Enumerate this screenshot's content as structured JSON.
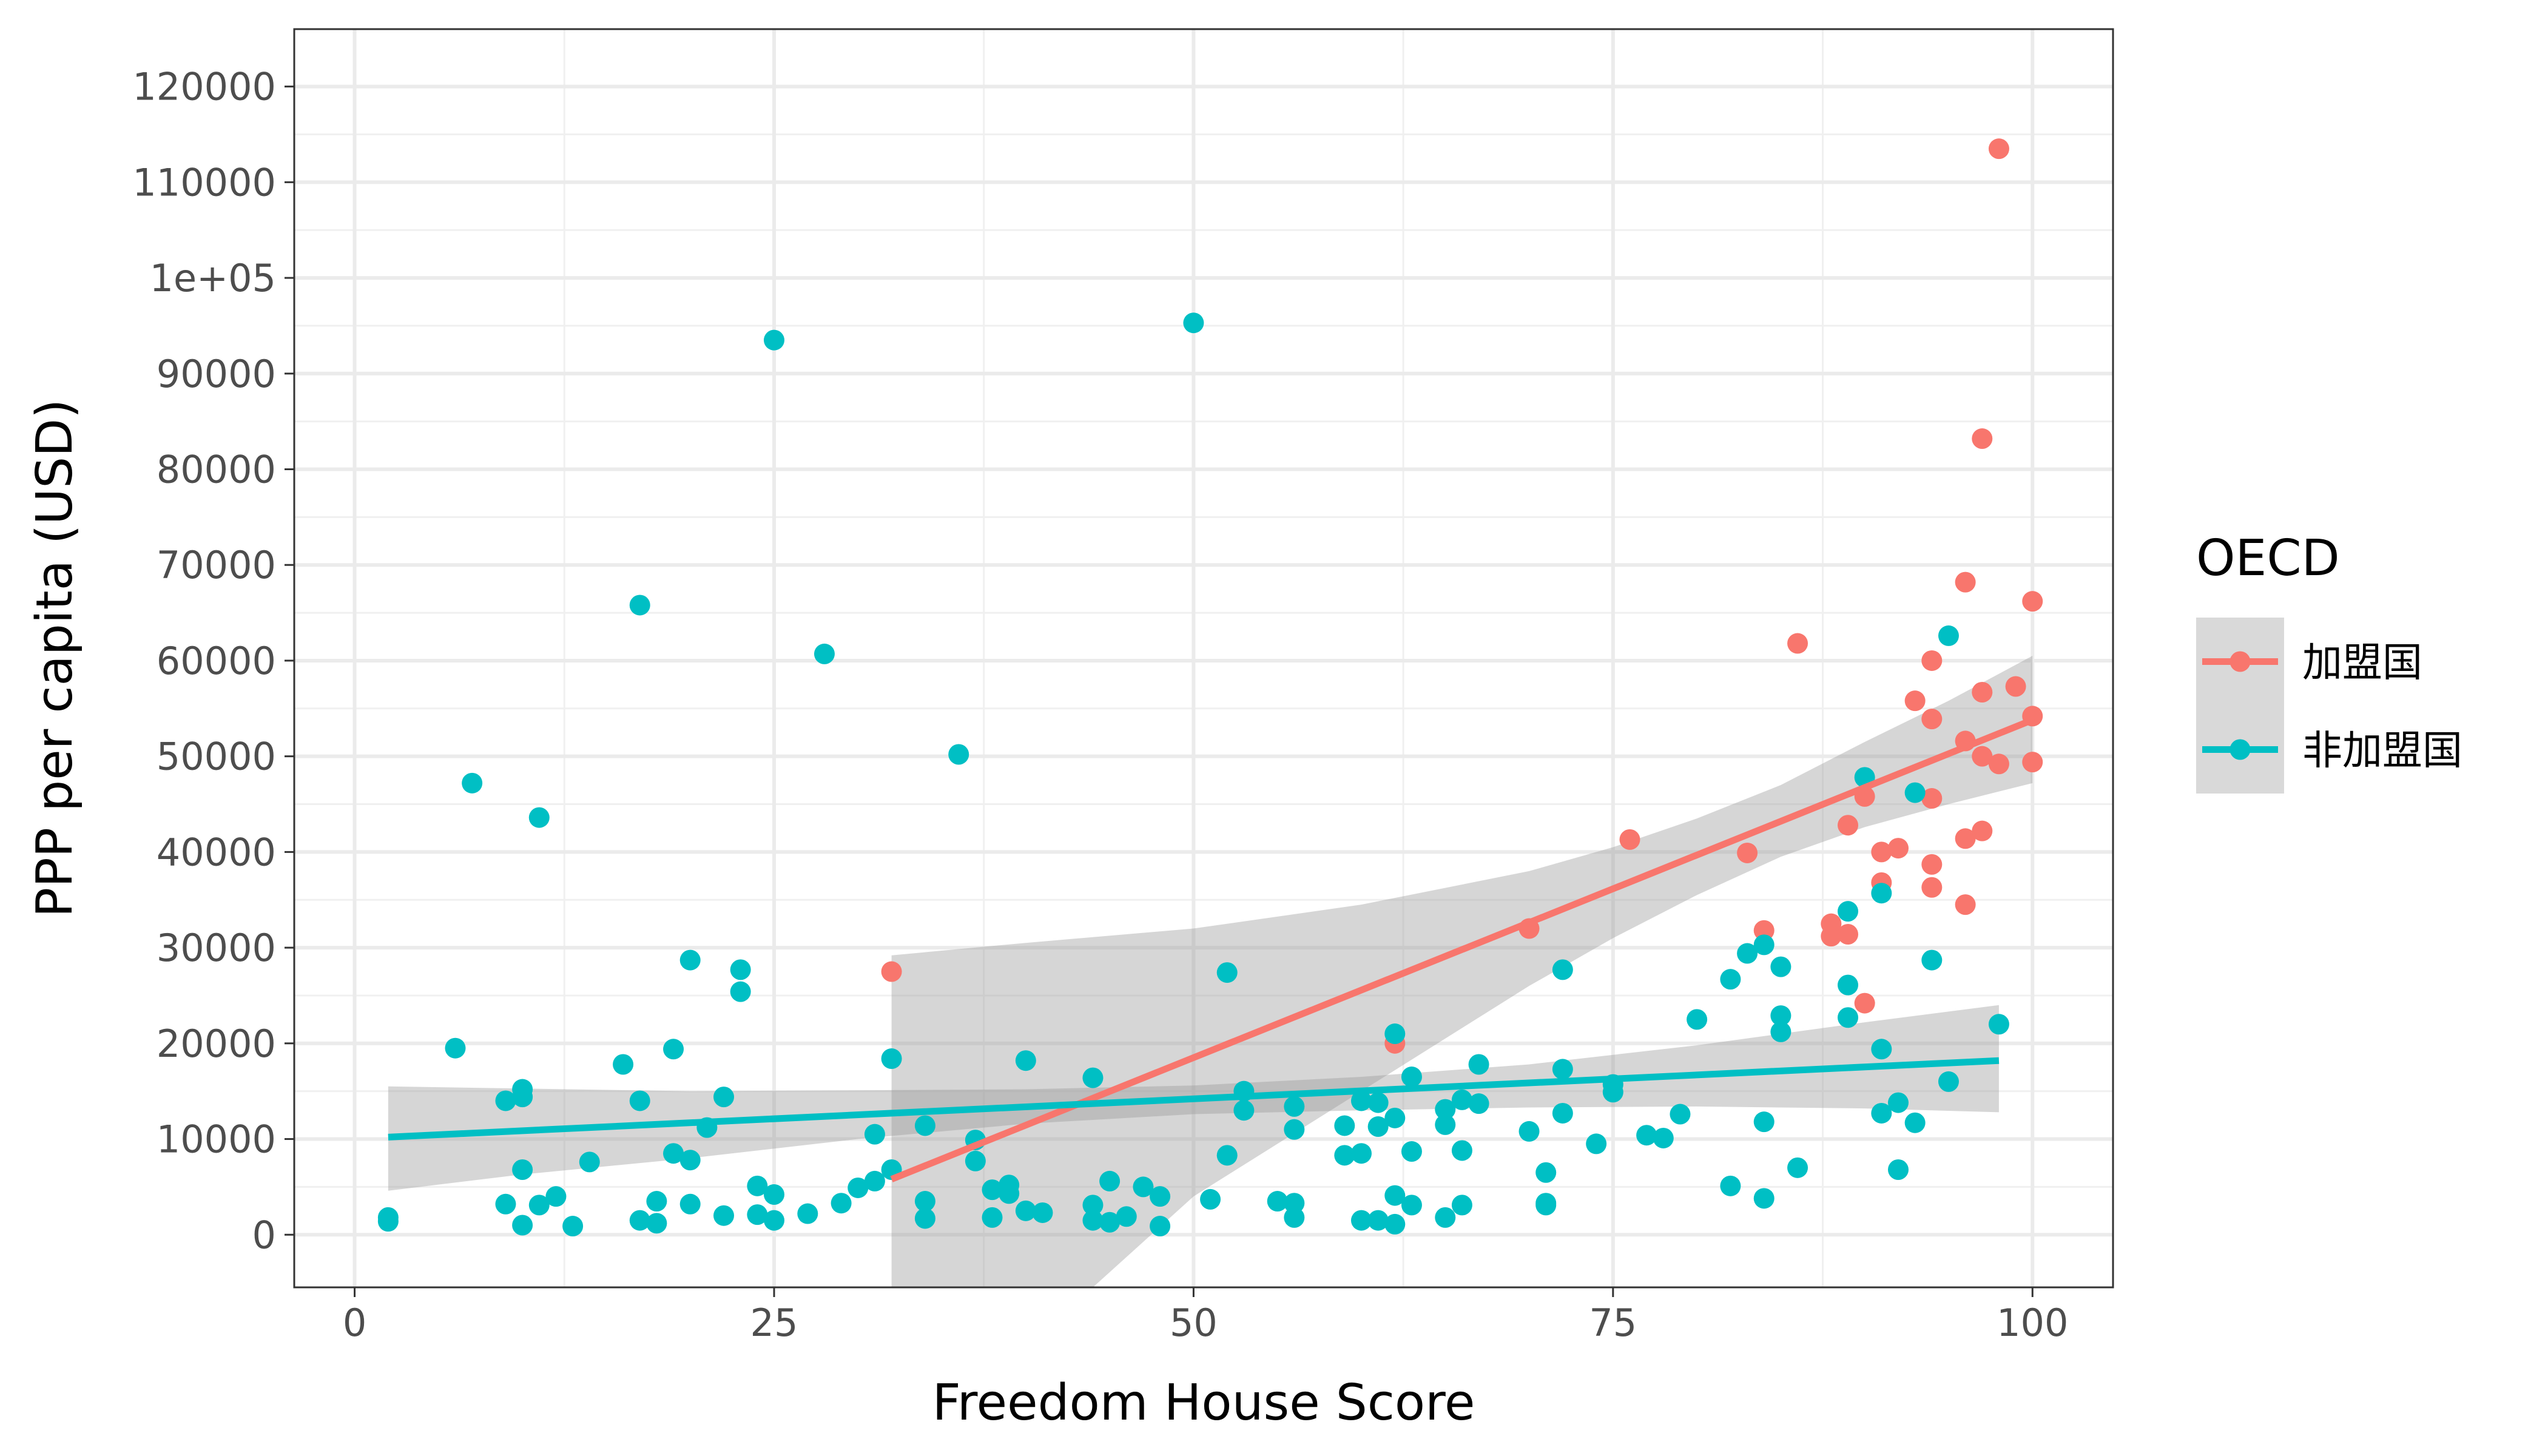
{
  "chart_data": {
    "type": "scatter",
    "xlabel": "Freedom House Score",
    "ylabel": "PPP per capita (USD)",
    "xlim": [
      -3.6,
      104.8
    ],
    "ylim": [
      -5500,
      126000
    ],
    "x_ticks": [
      0,
      25,
      50,
      75,
      100
    ],
    "x_tick_labels": [
      "0",
      "25",
      "50",
      "75",
      "100"
    ],
    "y_ticks": [
      0,
      10000,
      20000,
      30000,
      40000,
      50000,
      60000,
      70000,
      80000,
      90000,
      100000,
      110000,
      120000
    ],
    "y_tick_labels": [
      "0",
      "10000",
      "20000",
      "30000",
      "40000",
      "50000",
      "60000",
      "70000",
      "80000",
      "90000",
      "1e+05",
      "110000",
      "120000"
    ],
    "grid": true,
    "legend": {
      "title": "OECD",
      "position": "right"
    },
    "series": [
      {
        "name": "加盟国",
        "color": "#F8766D",
        "points": [
          [
            32,
            27500
          ],
          [
            62,
            20000
          ],
          [
            70,
            32000
          ],
          [
            76,
            41300
          ],
          [
            83,
            39900
          ],
          [
            84,
            31800
          ],
          [
            86,
            61800
          ],
          [
            88,
            32500
          ],
          [
            88,
            31200
          ],
          [
            89,
            31400
          ],
          [
            89,
            42800
          ],
          [
            90,
            24200
          ],
          [
            90,
            45800
          ],
          [
            91,
            40000
          ],
          [
            91,
            36800
          ],
          [
            92,
            40400
          ],
          [
            93,
            55800
          ],
          [
            94,
            60000
          ],
          [
            94,
            53900
          ],
          [
            94,
            45600
          ],
          [
            94,
            38700
          ],
          [
            94,
            36300
          ],
          [
            96,
            68200
          ],
          [
            96,
            51600
          ],
          [
            96,
            41400
          ],
          [
            96,
            34500
          ],
          [
            97,
            83200
          ],
          [
            97,
            56700
          ],
          [
            97,
            50000
          ],
          [
            97,
            42200
          ],
          [
            98,
            113500
          ],
          [
            98,
            49200
          ],
          [
            99,
            57300
          ],
          [
            100,
            66200
          ],
          [
            100,
            54200
          ],
          [
            100,
            49400
          ]
        ],
        "fit": {
          "x0": 32,
          "y0": 5800,
          "x1": 100,
          "y1": 53800
        },
        "band": [
          [
            32,
            29200
          ],
          [
            40,
            30500
          ],
          [
            50,
            32000
          ],
          [
            60,
            34500
          ],
          [
            70,
            38000
          ],
          [
            75,
            40500
          ],
          [
            80,
            43500
          ],
          [
            85,
            47000
          ],
          [
            90,
            51500
          ],
          [
            95,
            55800
          ],
          [
            100,
            60500
          ],
          [
            100,
            47200
          ],
          [
            95,
            45000
          ],
          [
            90,
            42600
          ],
          [
            85,
            39500
          ],
          [
            80,
            35500
          ],
          [
            75,
            31000
          ],
          [
            70,
            26000
          ],
          [
            60,
            15000
          ],
          [
            50,
            4000
          ],
          [
            44,
            -5500
          ],
          [
            32,
            -5500
          ]
        ]
      },
      {
        "name": "非加盟国",
        "color": "#00BFC4",
        "points": [
          [
            2,
            1800
          ],
          [
            2,
            1400
          ],
          [
            6,
            19500
          ],
          [
            7,
            47200
          ],
          [
            9,
            3200
          ],
          [
            9,
            14000
          ],
          [
            10,
            15200
          ],
          [
            10,
            14400
          ],
          [
            10,
            6800
          ],
          [
            10,
            1000
          ],
          [
            11,
            43600
          ],
          [
            11,
            3100
          ],
          [
            12,
            4000
          ],
          [
            13,
            900
          ],
          [
            14,
            7600
          ],
          [
            16,
            17800
          ],
          [
            17,
            65800
          ],
          [
            17,
            14000
          ],
          [
            17,
            1500
          ],
          [
            18,
            3500
          ],
          [
            18,
            1200
          ],
          [
            19,
            19400
          ],
          [
            19,
            8500
          ],
          [
            20,
            28700
          ],
          [
            20,
            7800
          ],
          [
            20,
            3200
          ],
          [
            21,
            11200
          ],
          [
            22,
            14400
          ],
          [
            22,
            2000
          ],
          [
            23,
            27700
          ],
          [
            23,
            25400
          ],
          [
            24,
            5100
          ],
          [
            24,
            2100
          ],
          [
            25,
            93500
          ],
          [
            25,
            4200
          ],
          [
            25,
            1500
          ],
          [
            27,
            2200
          ],
          [
            28,
            60700
          ],
          [
            29,
            3300
          ],
          [
            30,
            4900
          ],
          [
            31,
            5600
          ],
          [
            31,
            10500
          ],
          [
            32,
            18400
          ],
          [
            32,
            6800
          ],
          [
            34,
            11400
          ],
          [
            34,
            3500
          ],
          [
            34,
            1700
          ],
          [
            36,
            50200
          ],
          [
            37,
            9900
          ],
          [
            37,
            7700
          ],
          [
            38,
            4700
          ],
          [
            38,
            1800
          ],
          [
            39,
            5200
          ],
          [
            39,
            4300
          ],
          [
            40,
            18200
          ],
          [
            40,
            2500
          ],
          [
            41,
            2300
          ],
          [
            44,
            16400
          ],
          [
            44,
            3100
          ],
          [
            44,
            1500
          ],
          [
            45,
            5600
          ],
          [
            45,
            1300
          ],
          [
            46,
            1900
          ],
          [
            47,
            5000
          ],
          [
            48,
            4000
          ],
          [
            48,
            900
          ],
          [
            50,
            95300
          ],
          [
            51,
            3700
          ],
          [
            52,
            27400
          ],
          [
            52,
            8300
          ],
          [
            53,
            15000
          ],
          [
            53,
            13000
          ],
          [
            55,
            3500
          ],
          [
            56,
            13400
          ],
          [
            56,
            11000
          ],
          [
            56,
            3300
          ],
          [
            56,
            1800
          ],
          [
            59,
            11400
          ],
          [
            59,
            8300
          ],
          [
            60,
            14000
          ],
          [
            60,
            8500
          ],
          [
            60,
            1500
          ],
          [
            61,
            13800
          ],
          [
            61,
            11300
          ],
          [
            61,
            1500
          ],
          [
            62,
            21000
          ],
          [
            62,
            12200
          ],
          [
            62,
            4100
          ],
          [
            62,
            1100
          ],
          [
            63,
            16500
          ],
          [
            63,
            8700
          ],
          [
            63,
            3100
          ],
          [
            65,
            13100
          ],
          [
            65,
            11500
          ],
          [
            65,
            1800
          ],
          [
            66,
            14100
          ],
          [
            66,
            8800
          ],
          [
            66,
            3100
          ],
          [
            67,
            17800
          ],
          [
            67,
            13700
          ],
          [
            70,
            10800
          ],
          [
            71,
            6500
          ],
          [
            71,
            3300
          ],
          [
            71,
            3100
          ],
          [
            72,
            27700
          ],
          [
            72,
            17300
          ],
          [
            72,
            12700
          ],
          [
            74,
            9500
          ],
          [
            75,
            15700
          ],
          [
            75,
            14900
          ],
          [
            77,
            10400
          ],
          [
            78,
            10100
          ],
          [
            79,
            12600
          ],
          [
            80,
            22500
          ],
          [
            82,
            26700
          ],
          [
            82,
            5100
          ],
          [
            83,
            29400
          ],
          [
            84,
            30300
          ],
          [
            84,
            11800
          ],
          [
            84,
            3800
          ],
          [
            85,
            28000
          ],
          [
            85,
            22900
          ],
          [
            85,
            21200
          ],
          [
            86,
            7000
          ],
          [
            89,
            33800
          ],
          [
            89,
            26100
          ],
          [
            89,
            22700
          ],
          [
            90,
            47800
          ],
          [
            91,
            35700
          ],
          [
            91,
            19400
          ],
          [
            91,
            12700
          ],
          [
            92,
            13800
          ],
          [
            92,
            6800
          ],
          [
            93,
            46200
          ],
          [
            93,
            11700
          ],
          [
            94,
            28700
          ],
          [
            95,
            62600
          ],
          [
            95,
            16000
          ],
          [
            98,
            22000
          ]
        ],
        "fit": {
          "x0": 2,
          "y0": 10200,
          "x1": 98,
          "y1": 18200
        },
        "band": [
          [
            2,
            15500
          ],
          [
            20,
            15000
          ],
          [
            40,
            15200
          ],
          [
            50,
            15600
          ],
          [
            60,
            16500
          ],
          [
            70,
            17800
          ],
          [
            80,
            19800
          ],
          [
            90,
            22200
          ],
          [
            98,
            24000
          ],
          [
            98,
            12800
          ],
          [
            90,
            13200
          ],
          [
            80,
            13400
          ],
          [
            70,
            13300
          ],
          [
            60,
            13000
          ],
          [
            50,
            12600
          ],
          [
            40,
            11600
          ],
          [
            30,
            10000
          ],
          [
            20,
            8000
          ],
          [
            10,
            6300
          ],
          [
            2,
            4600
          ]
        ]
      }
    ]
  }
}
